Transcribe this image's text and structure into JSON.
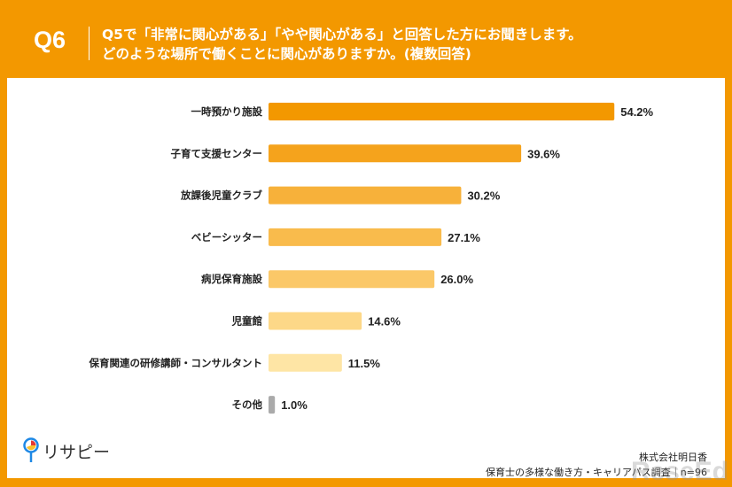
{
  "header": {
    "q": "Q6",
    "line1": "Q5で「非常に関心がある」「やや関心がある」と回答した方にお聞きします。",
    "line2": "どのような場所で働くことに関心がありますか。(複数回答)"
  },
  "chart_data": {
    "type": "bar",
    "orientation": "horizontal",
    "unit": "%",
    "categories": [
      "一時預かり施設",
      "子育て支援センター",
      "放課後児童クラブ",
      "ベビーシッター",
      "病児保育施設",
      "児童館",
      "保育関連の研修講師・コンサルタント",
      "その他"
    ],
    "values": [
      54.2,
      39.6,
      30.2,
      27.1,
      26.0,
      14.6,
      11.5,
      1.0
    ],
    "labels": [
      "54.2%",
      "39.6%",
      "30.2%",
      "27.1%",
      "26.0%",
      "14.6%",
      "11.5%",
      "1.0%"
    ],
    "colors": [
      "#f39800",
      "#f5a31c",
      "#f7b13a",
      "#f9bb4c",
      "#fbc868",
      "#fdd888",
      "#fee5a5",
      "#aaaaaa"
    ],
    "grid": false
  },
  "footer": {
    "logo": "リサピー",
    "company": "株式会社明日香",
    "survey": "保育士の多様な働き方・キャリアパス調査｜n=96",
    "watermark": "ReseEd"
  }
}
